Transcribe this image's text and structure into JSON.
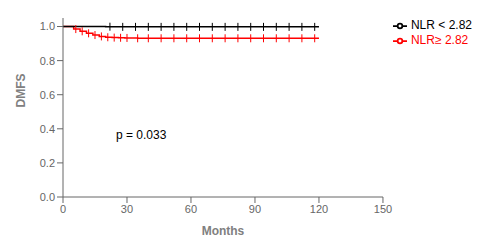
{
  "chart_data": {
    "type": "step",
    "xlabel": "Months",
    "ylabel": "DMFS",
    "xlim": [
      0,
      150
    ],
    "ylim": [
      0.0,
      1.05
    ],
    "xticks": [
      0,
      30,
      60,
      90,
      120,
      150
    ],
    "yticks": [
      {
        "value": 0,
        "label": "0.0"
      },
      0.2,
      0.4,
      0.6,
      0.8,
      {
        "value": 1,
        "label": "1.0"
      }
    ],
    "grid": false,
    "legend": "right",
    "annotations": [
      {
        "text": "p = 0.033"
      }
    ],
    "series": [
      {
        "name": "NLR≥ 2.82",
        "color": "#FF0000",
        "marker": "|",
        "x": [
          0,
          5,
          5,
          8,
          8,
          11,
          11,
          14,
          14,
          17,
          17,
          20,
          20,
          23,
          23,
          26,
          26,
          29,
          29,
          32,
          32,
          35,
          35,
          38,
          38,
          120
        ],
        "values": [
          1.0,
          1.0,
          0.985,
          0.985,
          0.972,
          0.972,
          0.96,
          0.96,
          0.95,
          0.95,
          0.942,
          0.942,
          0.937,
          0.937,
          0.935,
          0.935,
          0.934,
          0.934,
          0.933,
          0.933,
          0.932,
          0.932,
          0.931,
          0.931,
          0.931,
          0.931
        ],
        "censored": {
          "x": [
            6,
            9,
            12,
            15,
            18,
            21,
            24,
            27,
            30,
            35,
            40,
            46,
            52,
            58,
            64,
            70,
            76,
            82,
            88,
            94,
            100,
            106,
            112,
            118
          ],
          "values": [
            0.985,
            0.972,
            0.96,
            0.95,
            0.942,
            0.937,
            0.935,
            0.934,
            0.933,
            0.931,
            0.931,
            0.931,
            0.931,
            0.931,
            0.931,
            0.931,
            0.931,
            0.931,
            0.931,
            0.931,
            0.931,
            0.931,
            0.931,
            0.931
          ]
        }
      },
      {
        "name": "NLR < 2.82",
        "color": "#000000",
        "marker": "|",
        "x": [
          0,
          20,
          20,
          25,
          25,
          120
        ],
        "values": [
          1.0,
          1.0,
          0.999,
          0.999,
          0.998,
          0.998
        ],
        "censored": {
          "x": [
            22,
            28,
            34,
            40,
            46,
            52,
            58,
            64,
            70,
            76,
            82,
            88,
            94,
            100,
            106,
            112,
            118
          ],
          "values": [
            0.999,
            0.998,
            0.998,
            0.998,
            0.998,
            0.998,
            0.998,
            0.998,
            0.998,
            0.998,
            0.998,
            0.998,
            0.998,
            0.998,
            0.998,
            0.998,
            0.998
          ]
        }
      }
    ]
  }
}
